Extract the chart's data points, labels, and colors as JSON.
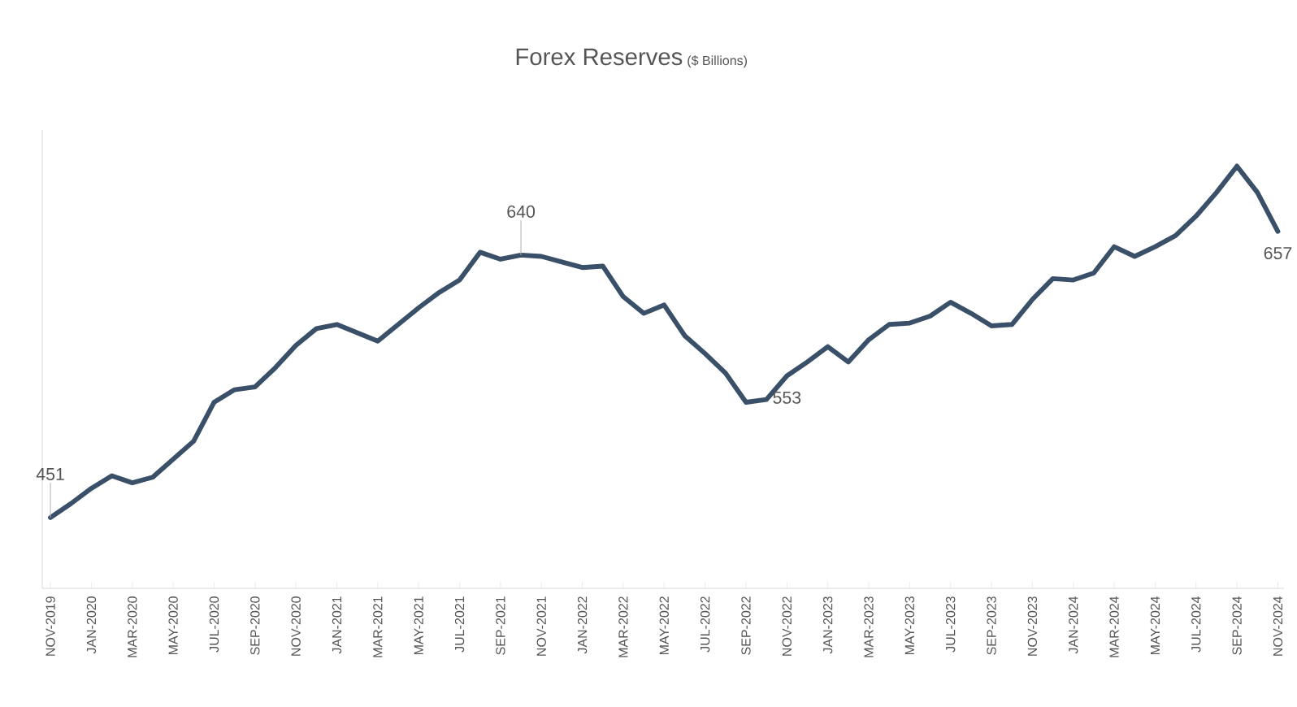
{
  "chart_data": {
    "type": "line",
    "title": "Forex Reserves",
    "subtitle": "($ Billions)",
    "categories": [
      "NOV-2019",
      null,
      "JAN-2020",
      null,
      "MAR-2020",
      null,
      "MAY-2020",
      null,
      "JUL-2020",
      null,
      "SEP-2020",
      null,
      "NOV-2020",
      null,
      "JAN-2021",
      null,
      "MAR-2021",
      null,
      "MAY-2021",
      null,
      "JUL-2021",
      null,
      "SEP-2021",
      null,
      "NOV-2021",
      null,
      "JAN-2022",
      null,
      "MAR-2022",
      null,
      "MAY-2022",
      null,
      "JUL-2022",
      null,
      "SEP-2022",
      null,
      "NOV-2022",
      null,
      "JAN-2023",
      null,
      "MAR-2023",
      null,
      "MAY-2023",
      null,
      "JUL-2023",
      null,
      "SEP-2023",
      null,
      "NOV-2023",
      null,
      "JAN-2024",
      null,
      "MAR-2024",
      null,
      "MAY-2024",
      null,
      "JUL-2024",
      null,
      "SEP-2024",
      null,
      "NOV-2024"
    ],
    "series": [
      {
        "color": "#3a5068",
        "values": [
          451,
          461,
          472,
          481,
          476,
          480,
          493,
          506,
          534,
          543,
          545,
          559,
          575,
          587,
          590,
          584,
          578,
          590,
          602,
          613,
          622,
          642,
          637,
          640,
          639,
          635,
          631,
          632,
          610,
          598,
          604,
          582,
          569,
          555,
          534,
          536,
          553,
          563,
          574,
          563,
          579,
          590,
          591,
          596,
          606,
          598,
          589,
          590,
          608,
          623,
          622,
          627,
          646,
          639,
          646,
          654,
          668,
          685,
          704,
          685,
          657
        ],
        "value_labels": [
          "451",
          null,
          null,
          null,
          null,
          null,
          null,
          null,
          null,
          null,
          null,
          null,
          null,
          null,
          null,
          null,
          null,
          null,
          null,
          null,
          null,
          null,
          null,
          "640",
          null,
          null,
          null,
          null,
          null,
          null,
          null,
          null,
          null,
          null,
          null,
          null,
          "553",
          null,
          null,
          null,
          null,
          null,
          null,
          null,
          null,
          null,
          null,
          null,
          null,
          null,
          null,
          null,
          null,
          null,
          null,
          null,
          null,
          null,
          null,
          null,
          "657"
        ]
      }
    ],
    "ylim": [
      400,
      730
    ],
    "marker": "none",
    "line_style": "solid",
    "grid": false
  }
}
